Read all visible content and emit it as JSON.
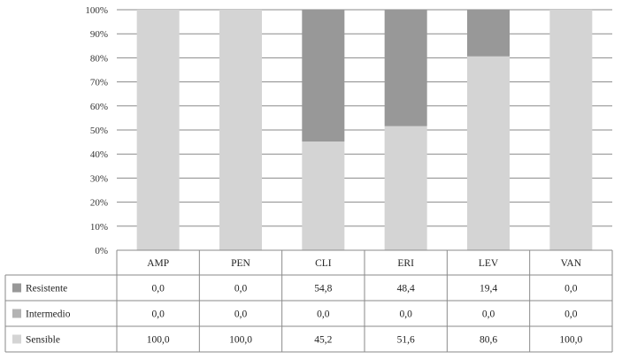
{
  "chart_data": {
    "type": "bar",
    "stacked": true,
    "categories": [
      "AMP",
      "PEN",
      "CLI",
      "ERI",
      "LEV",
      "VAN"
    ],
    "series": [
      {
        "name": "Resistente",
        "values": [
          0.0,
          0.0,
          54.8,
          48.4,
          19.4,
          0.0
        ],
        "labels": [
          "0,0",
          "0,0",
          "54,8",
          "48,4",
          "19,4",
          "0,0"
        ],
        "color": "#989898"
      },
      {
        "name": "Intermedio",
        "values": [
          0.0,
          0.0,
          0.0,
          0.0,
          0.0,
          0.0
        ],
        "labels": [
          "0,0",
          "0,0",
          "0,0",
          "0,0",
          "0,0",
          "0,0"
        ],
        "color": "#b3b3b3"
      },
      {
        "name": "Sensible",
        "values": [
          100.0,
          100.0,
          45.2,
          51.6,
          80.6,
          100.0
        ],
        "labels": [
          "100,0",
          "100,0",
          "45,2",
          "51,6",
          "80,6",
          "100,0"
        ],
        "color": "#d4d4d4"
      }
    ],
    "stack_order_bottom_to_top": [
      "Sensible",
      "Intermedio",
      "Resistente"
    ],
    "yticks": [
      "0%",
      "10%",
      "20%",
      "30%",
      "40%",
      "50%",
      "60%",
      "70%",
      "80%",
      "90%",
      "100%"
    ],
    "ylim": [
      0,
      100
    ],
    "grid": true,
    "legend": "data-table-below",
    "title": "",
    "xlabel": "",
    "ylabel": ""
  }
}
